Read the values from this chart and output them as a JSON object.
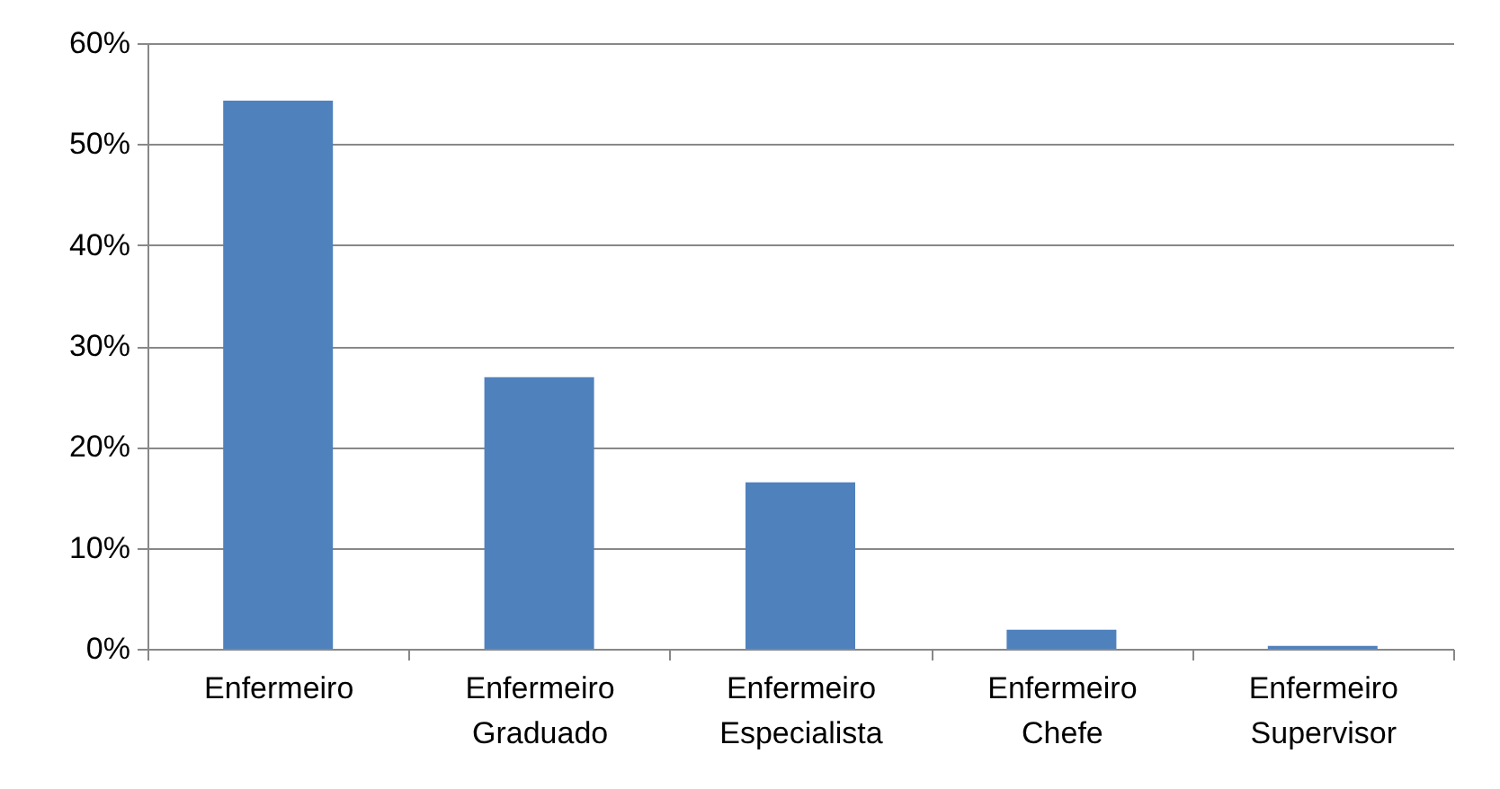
{
  "chart_data": {
    "type": "bar",
    "categories": [
      "Enfermeiro",
      "Enfermeiro Graduado",
      "Enfermeiro Especialista",
      "Enfermeiro Chefe",
      "Enfermeiro Supervisor"
    ],
    "values": [
      54.3,
      26.9,
      16.5,
      1.9,
      0.3
    ],
    "color": "#4f81bd",
    "ylim": [
      0,
      60
    ],
    "yticks": [
      {
        "value": 0,
        "label": "0%"
      },
      {
        "value": 10,
        "label": "10%"
      },
      {
        "value": 20,
        "label": "20%"
      },
      {
        "value": 30,
        "label": "30%"
      },
      {
        "value": 40,
        "label": "40%"
      },
      {
        "value": 50,
        "label": "50%"
      },
      {
        "value": 60,
        "label": "60%"
      }
    ],
    "grid": "y"
  }
}
